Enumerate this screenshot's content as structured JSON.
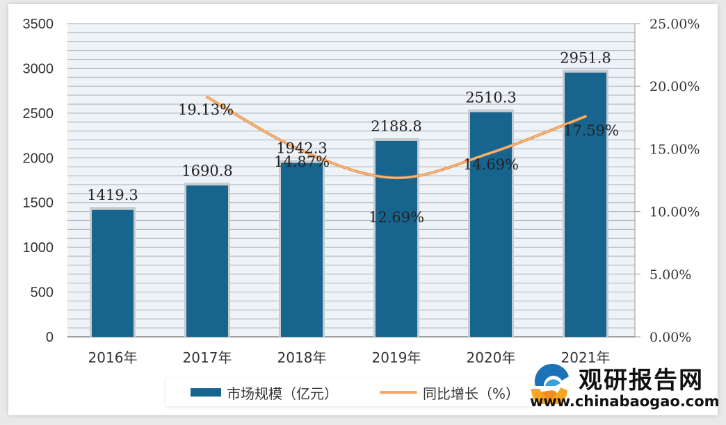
{
  "chart_data": {
    "type": "bar+line",
    "categories": [
      "2016年",
      "2017年",
      "2018年",
      "2019年",
      "2020年",
      "2021年"
    ],
    "series": [
      {
        "name": "市场规模（亿元）",
        "type": "bar",
        "axis": "left",
        "color": "#17658f",
        "values": [
          1419.3,
          1690.8,
          1942.3,
          2188.8,
          2510.3,
          2951.8
        ],
        "labels": [
          "1419.3",
          "1690.8",
          "1942.3",
          "2188.8",
          "2510.3",
          "2951.8"
        ]
      },
      {
        "name": "同比增长（%）",
        "type": "line",
        "axis": "right",
        "color": "#f4a96a",
        "values": [
          null,
          19.13,
          14.87,
          12.69,
          14.69,
          17.59
        ],
        "labels": [
          "",
          "19.13%",
          "14.87%",
          "12.69%",
          "14.69%",
          "17.59%"
        ]
      }
    ],
    "left_axis": {
      "min": 0,
      "max": 3500,
      "ticks": [
        "0",
        "500",
        "1000",
        "1500",
        "2000",
        "2500",
        "3000",
        "3500"
      ]
    },
    "right_axis": {
      "min": 0,
      "max": 25,
      "ticks": [
        "0.00%",
        "5.00%",
        "10.00%",
        "15.00%",
        "20.00%",
        "25.00%"
      ]
    },
    "grid": true,
    "legend_position": "bottom"
  },
  "legend": {
    "bar_label": "市场规模（亿元）",
    "line_label": "同比增长（%）"
  },
  "watermark": {
    "title": "观研报告网",
    "url": "www.chinabaogao.com"
  }
}
